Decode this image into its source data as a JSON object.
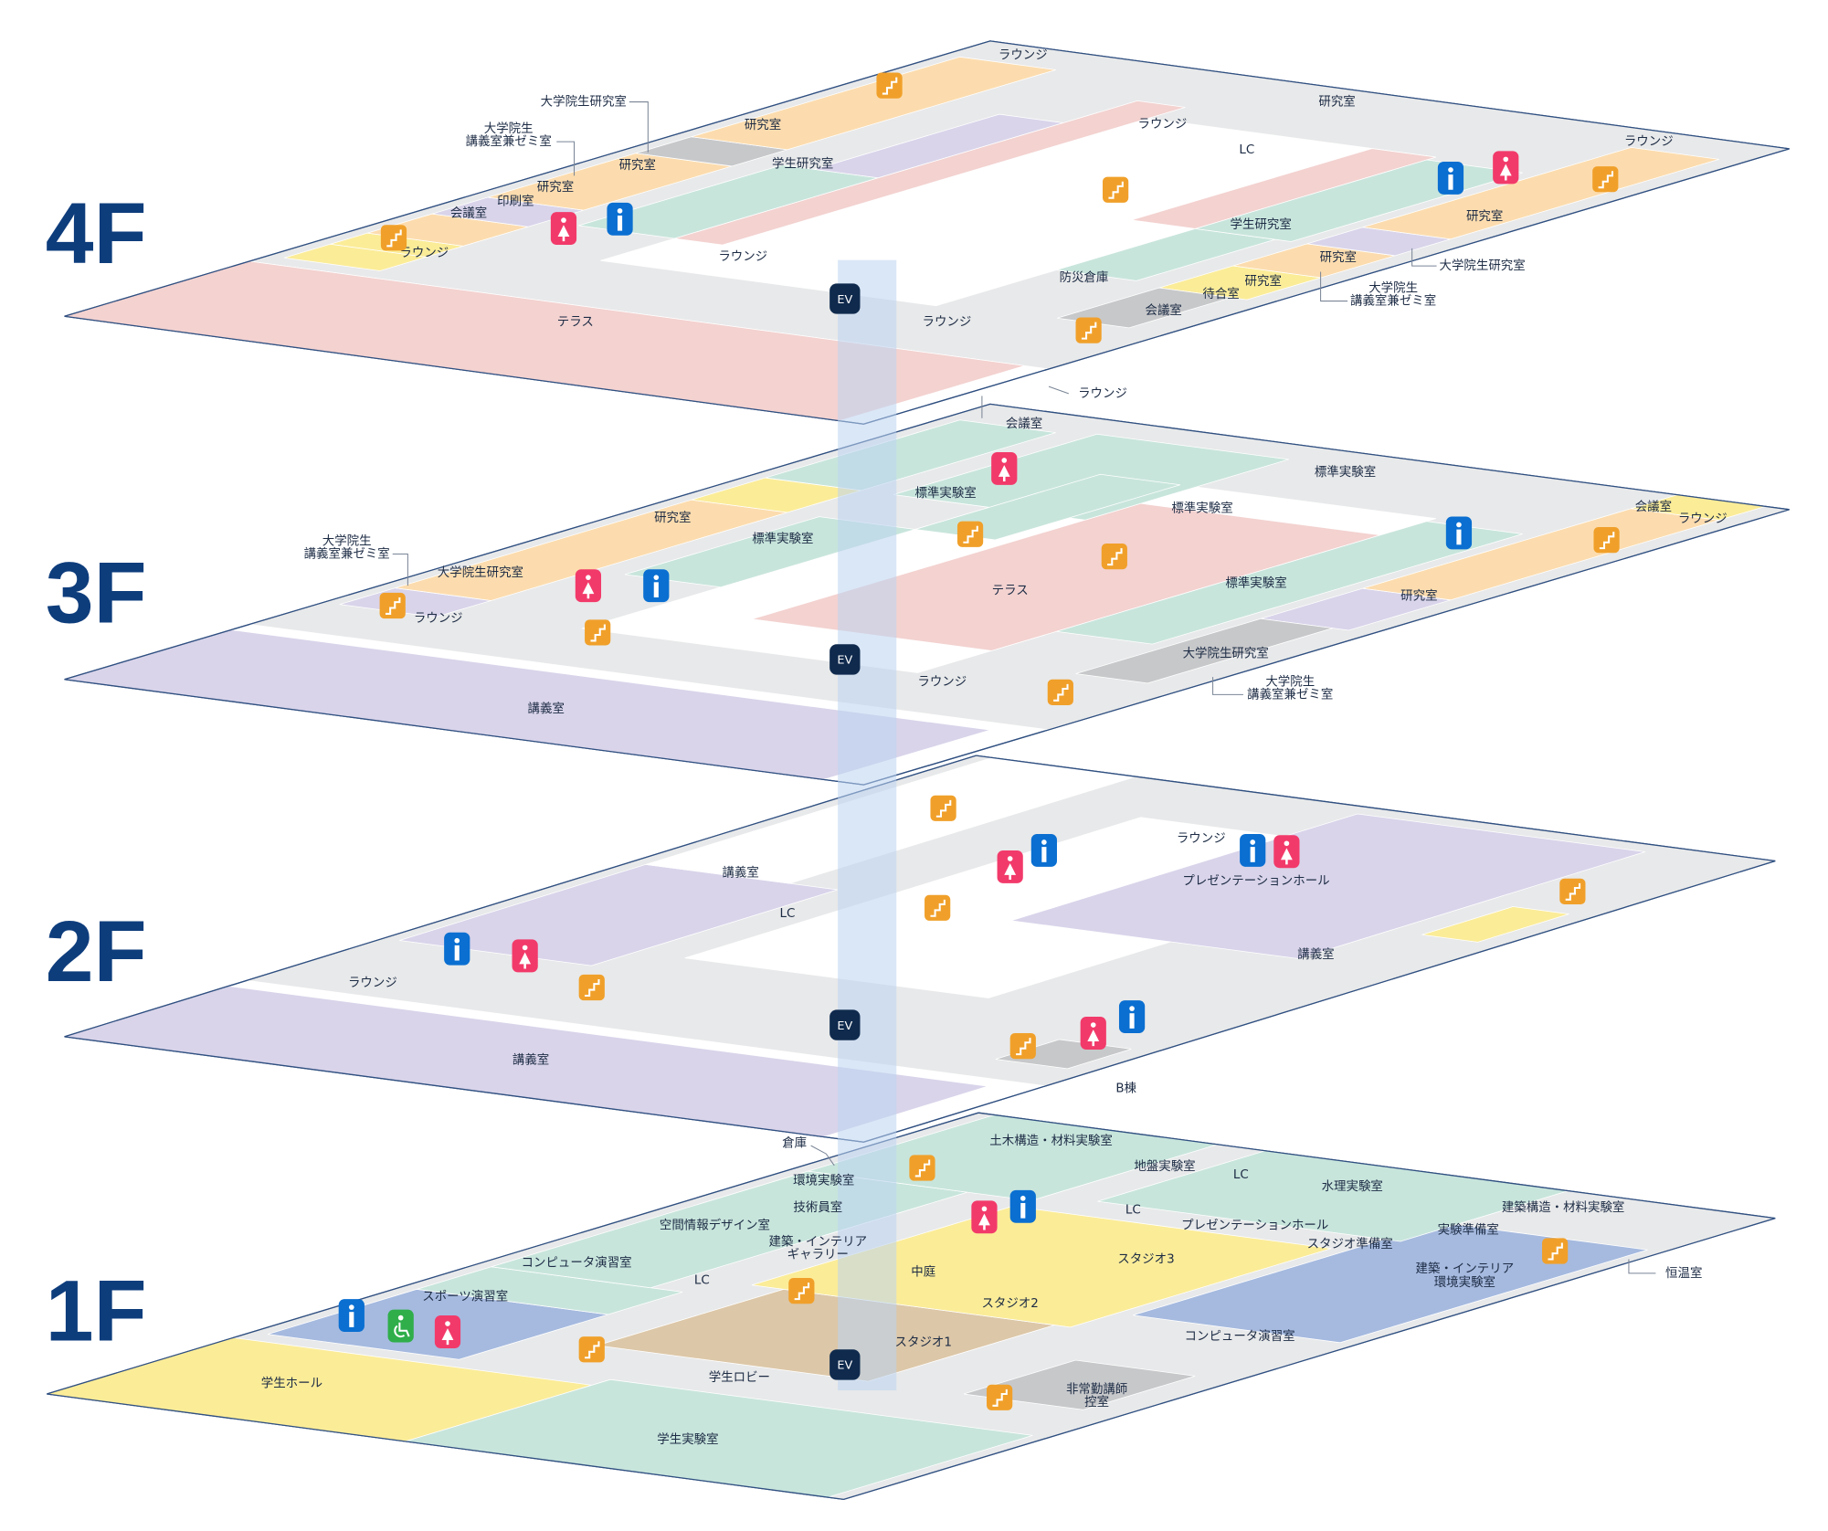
{
  "colors": {
    "outline": "#2f4f80",
    "corridor": "#e8e9ea",
    "service": "#c7c8ca",
    "research": "#fcdcae",
    "student_lab": "#c8e5dc",
    "terrace": "#f3d2d0",
    "lecture": "#d9d4ea",
    "meeting": "#fbec98",
    "computer": "#a6badf",
    "courtyard": "#dcc7a8",
    "floor_label": "#0e3d7c",
    "stairs": "#f0a02a",
    "toilet_male": "#0a6fd1",
    "toilet_female": "#f23a6a",
    "toilet_accessible": "#2fae4a",
    "elevator": "#0f2a4d"
  },
  "icons": {
    "stairs": "stairs-icon",
    "male": "male-toilet-icon",
    "female": "female-toilet-icon",
    "accessible": "accessible-toilet-icon",
    "elevator": "elevator-icon"
  },
  "elevator_label": "EV",
  "floors": [
    {
      "level": "4F",
      "labels": [
        "ラウンジ",
        "大学院生研究室",
        "研究室",
        "大学院生",
        "講義室兼ゼミ室",
        "研究室",
        "学生研究室",
        "研究室",
        "印刷室",
        "会議室",
        "ラウンジ",
        "ラウンジ",
        "ラウンジ",
        "LC",
        "研究室",
        "ラウンジ",
        "研究室",
        "学生研究室",
        "大学院生研究室",
        "研究室",
        "大学院生",
        "講義室兼ゼミ室",
        "研究室",
        "待合室",
        "防災倉庫",
        "会議室",
        "ラウンジ",
        "テラス",
        "ラウンジ"
      ]
    },
    {
      "level": "3F",
      "labels": [
        "ラウンジ",
        "会議室",
        "標準実験室",
        "標準実験室",
        "標準実験室",
        "会議室",
        "ラウンジ",
        "研究室",
        "標準実験室",
        "大学院生",
        "講義室兼ゼミ室",
        "大学院生研究室",
        "テラス",
        "標準実験室",
        "研究室",
        "ラウンジ",
        "ラウンジ",
        "大学院生研究室",
        "大学院生",
        "講義室兼ゼミ室",
        "講義室"
      ]
    },
    {
      "level": "2F",
      "labels": [
        "ラウンジ",
        "プレゼンテーションホール",
        "講義室",
        "LC",
        "講義室",
        "ラウンジ",
        "講義室",
        "B棟"
      ]
    },
    {
      "level": "1F",
      "labels": [
        "倉庫",
        "土木構造・材料実験室",
        "地盤実験室",
        "LC",
        "環境実験室",
        "水理実験室",
        "技術員室",
        "LC",
        "建築構造・材料実験室",
        "空間情報デザイン室",
        "プレゼンテーションホール",
        "実験準備室",
        "建築・インテリア",
        "ギャラリー",
        "スタジオ準備室",
        "コンピュータ演習室",
        "スタジオ3",
        "中庭",
        "建築・インテリア",
        "環境実験室",
        "恒温室",
        "LC",
        "スポーツ演習室",
        "スタジオ2",
        "コンピュータ演習室",
        "スタジオ1",
        "学生ロビー",
        "学生ホール",
        "非常勤講師",
        "控室",
        "学生実験室"
      ]
    }
  ]
}
